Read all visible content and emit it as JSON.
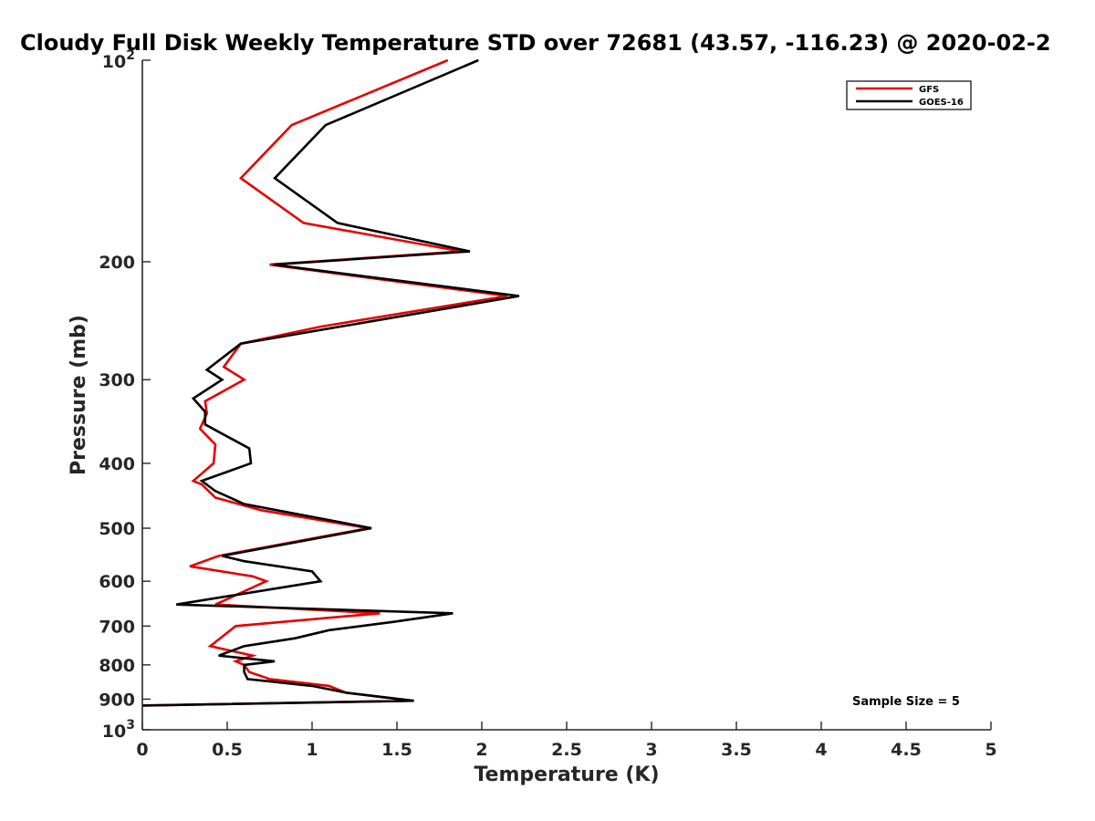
{
  "chart_data": {
    "type": "line",
    "title": "Cloudy Full Disk Weekly Temperature STD over 72681 (43.57, -116.23) @ 2020-02-2",
    "xlabel": "Temperature (K)",
    "ylabel": "Pressure (mb)",
    "xlim": [
      0,
      5
    ],
    "ylim": [
      100,
      1000
    ],
    "y_scale": "log",
    "y_reversed": true,
    "x_ticks": [
      "0",
      "0.5",
      "1",
      "1.5",
      "2",
      "2.5",
      "3",
      "3.5",
      "4",
      "4.5",
      "5"
    ],
    "y_ticks": [
      {
        "value": 100,
        "base": "10",
        "exp": "2"
      },
      {
        "value": 200,
        "label": "200"
      },
      {
        "value": 300,
        "label": "300"
      },
      {
        "value": 400,
        "label": "400"
      },
      {
        "value": 500,
        "label": "500"
      },
      {
        "value": 600,
        "label": "600"
      },
      {
        "value": 700,
        "label": "700"
      },
      {
        "value": 800,
        "label": "800"
      },
      {
        "value": 900,
        "label": "900"
      },
      {
        "value": 1000,
        "base": "10",
        "exp": "3"
      }
    ],
    "grid": false,
    "legend_position": "top-right",
    "series": [
      {
        "name": "GFS",
        "color": "#e60000",
        "points": [
          [
            1.8,
            100
          ],
          [
            0.88,
            125
          ],
          [
            0.58,
            150
          ],
          [
            0.95,
            175
          ],
          [
            1.88,
            193
          ],
          [
            0.75,
            202
          ],
          [
            2.15,
            225
          ],
          [
            1.05,
            250
          ],
          [
            0.58,
            265
          ],
          [
            0.48,
            287
          ],
          [
            0.6,
            300
          ],
          [
            0.37,
            323
          ],
          [
            0.38,
            337
          ],
          [
            0.34,
            355
          ],
          [
            0.43,
            375
          ],
          [
            0.42,
            400
          ],
          [
            0.3,
            425
          ],
          [
            0.35,
            430
          ],
          [
            0.43,
            450
          ],
          [
            0.7,
            470
          ],
          [
            1.33,
            500
          ],
          [
            0.45,
            550
          ],
          [
            0.28,
            570
          ],
          [
            0.65,
            590
          ],
          [
            0.73,
            600
          ],
          [
            0.43,
            650
          ],
          [
            1.4,
            670
          ],
          [
            0.55,
            700
          ],
          [
            0.4,
            750
          ],
          [
            0.65,
            775
          ],
          [
            0.55,
            790
          ],
          [
            0.6,
            800
          ],
          [
            0.63,
            820
          ],
          [
            0.75,
            840
          ],
          [
            1.1,
            860
          ],
          [
            1.2,
            880
          ],
          [
            1.58,
            905
          ],
          [
            0.0,
            920
          ]
        ]
      },
      {
        "name": "GOES-16",
        "color": "#000000",
        "points": [
          [
            1.98,
            100
          ],
          [
            1.08,
            125
          ],
          [
            0.78,
            150
          ],
          [
            1.15,
            175
          ],
          [
            1.93,
            193
          ],
          [
            0.77,
            202
          ],
          [
            2.22,
            225
          ],
          [
            0.58,
            265
          ],
          [
            0.38,
            290
          ],
          [
            0.47,
            300
          ],
          [
            0.3,
            320
          ],
          [
            0.37,
            335
          ],
          [
            0.37,
            350
          ],
          [
            0.63,
            380
          ],
          [
            0.64,
            400
          ],
          [
            0.35,
            425
          ],
          [
            0.43,
            440
          ],
          [
            0.6,
            460
          ],
          [
            1.35,
            500
          ],
          [
            0.47,
            550
          ],
          [
            0.6,
            560
          ],
          [
            1.0,
            580
          ],
          [
            1.05,
            600
          ],
          [
            0.2,
            650
          ],
          [
            1.83,
            670
          ],
          [
            1.48,
            690
          ],
          [
            1.1,
            710
          ],
          [
            0.9,
            730
          ],
          [
            0.6,
            750
          ],
          [
            0.45,
            775
          ],
          [
            0.78,
            790
          ],
          [
            0.6,
            800
          ],
          [
            0.6,
            820
          ],
          [
            0.62,
            840
          ],
          [
            1.0,
            860
          ],
          [
            1.2,
            880
          ],
          [
            1.6,
            905
          ],
          [
            0.0,
            920
          ]
        ]
      }
    ],
    "annotations": [
      {
        "text": "Sample Size = 5",
        "x": 4.5,
        "y": 905
      }
    ]
  }
}
